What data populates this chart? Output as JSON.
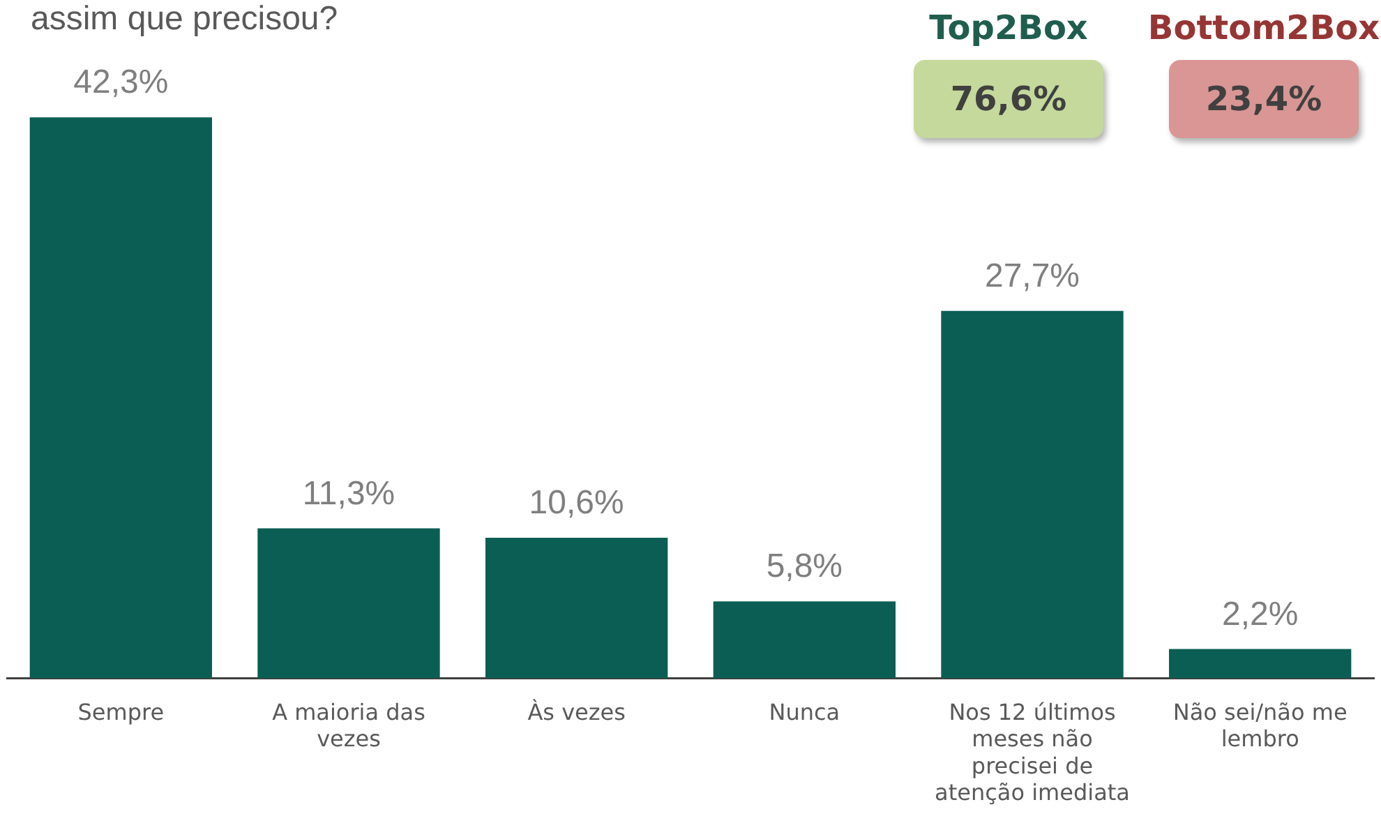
{
  "chart_data": {
    "type": "bar",
    "title": "assim que precisou?",
    "categories": [
      "Sempre",
      "A maioria das vezes",
      "Às vezes",
      "Nunca",
      "Nos 12 últimos meses não precisei de atenção imediata",
      "Não sei/não me lembro"
    ],
    "values": [
      42.3,
      11.3,
      10.6,
      5.8,
      27.7,
      2.2
    ],
    "value_labels": [
      "42,3%",
      "11,3%",
      "10,6%",
      "5,8%",
      "27,7%",
      "2,2%"
    ],
    "color": "#0b5e54",
    "grid": false,
    "legend": false,
    "annotations": [
      "Top2Box",
      "76,6%",
      "Bottom2Box",
      "23,4%"
    ]
  }
}
